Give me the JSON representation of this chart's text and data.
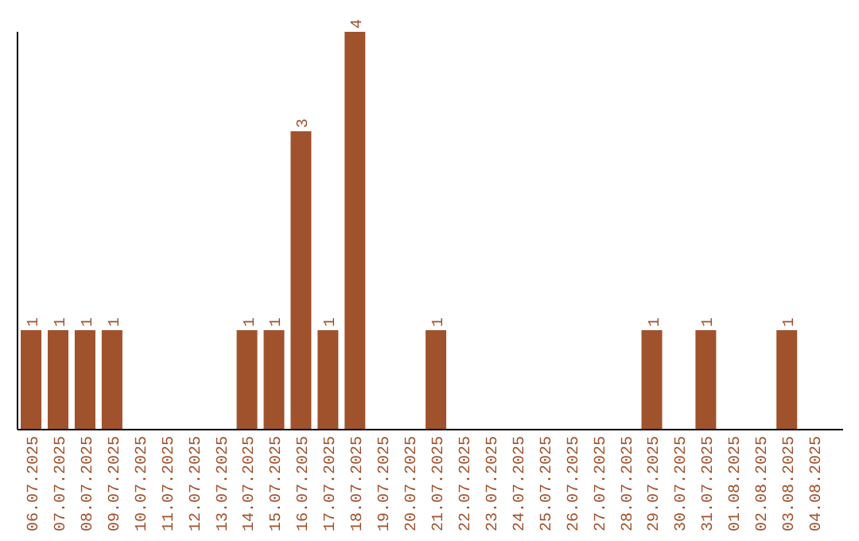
{
  "chart_data": {
    "type": "bar",
    "categories": [
      "06.07.2025",
      "07.07.2025",
      "08.07.2025",
      "09.07.2025",
      "10.07.2025",
      "11.07.2025",
      "12.07.2025",
      "13.07.2025",
      "14.07.2025",
      "15.07.2025",
      "16.07.2025",
      "17.07.2025",
      "18.07.2025",
      "19.07.2025",
      "20.07.2025",
      "21.07.2025",
      "22.07.2025",
      "23.07.2025",
      "24.07.2025",
      "25.07.2025",
      "26.07.2025",
      "27.07.2025",
      "28.07.2025",
      "29.07.2025",
      "30.07.2025",
      "31.07.2025",
      "01.08.2025",
      "02.08.2025",
      "03.08.2025",
      "04.08.2025"
    ],
    "values": [
      1,
      1,
      1,
      1,
      0,
      0,
      0,
      0,
      1,
      1,
      3,
      1,
      4,
      0,
      0,
      1,
      0,
      0,
      0,
      0,
      0,
      0,
      0,
      1,
      0,
      1,
      0,
      0,
      1,
      0
    ],
    "value_labels": [
      "1",
      "1",
      "1",
      "1",
      null,
      null,
      null,
      null,
      "1",
      "1",
      "3",
      "1",
      "4",
      null,
      null,
      "1",
      null,
      null,
      null,
      null,
      null,
      null,
      null,
      "1",
      null,
      "1",
      null,
      null,
      "1",
      null
    ],
    "color": "#a0522d",
    "grid": false
  }
}
